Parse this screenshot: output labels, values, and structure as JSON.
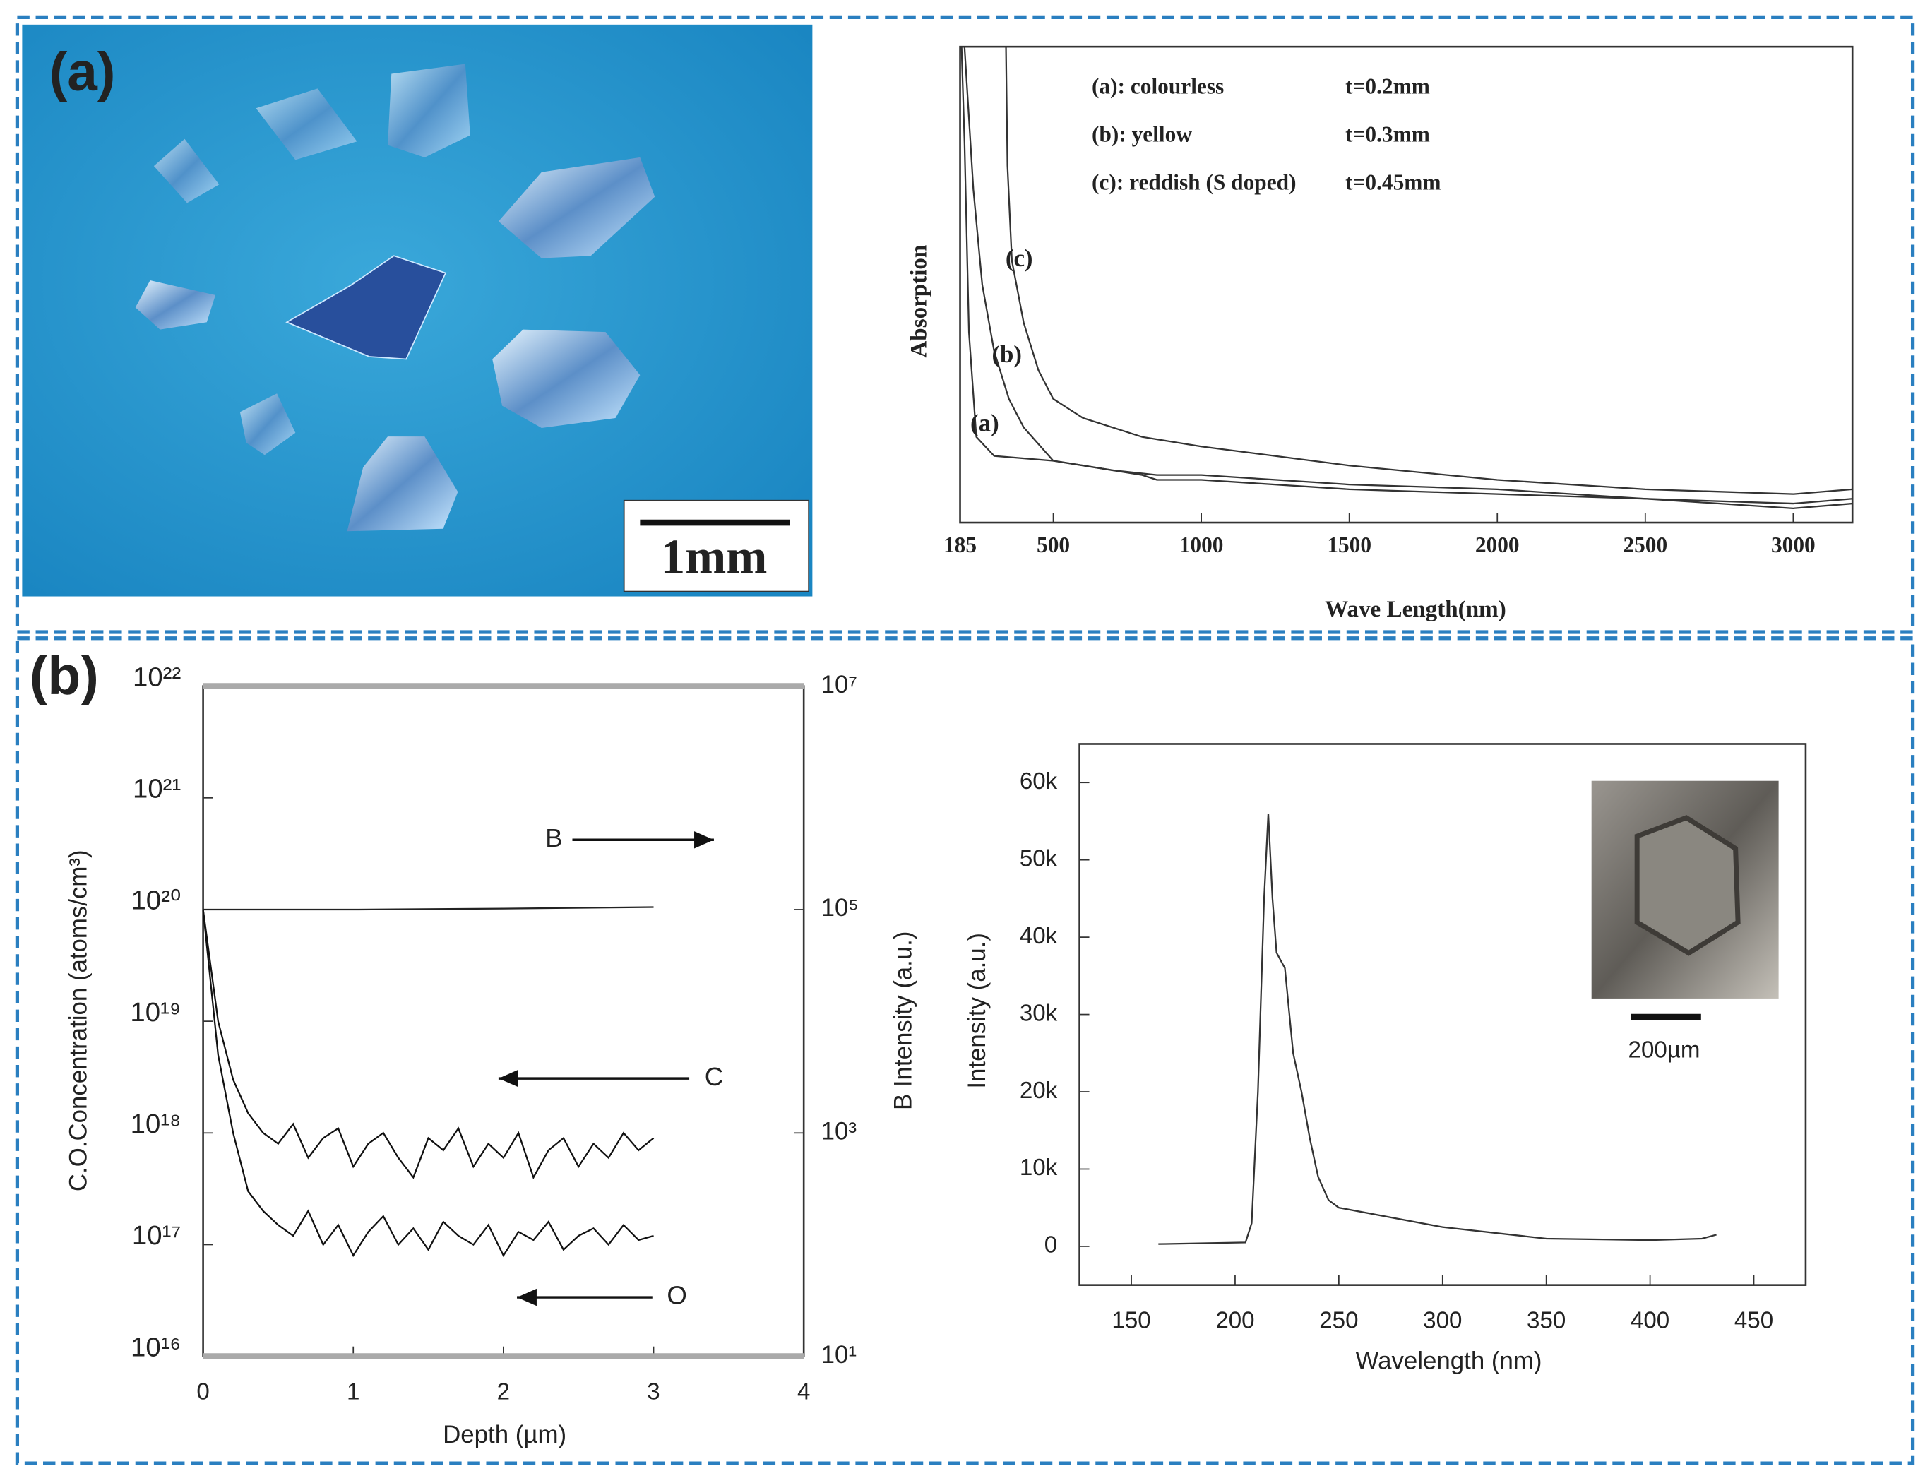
{
  "panels": [
    "(a)",
    "(b)"
  ],
  "photo_scale": "1mm",
  "chart_data": [
    {
      "type": "line",
      "xlabel": "Wave Length(nm)",
      "ylabel": "Absorption",
      "xlim": [
        185,
        3200
      ],
      "xticks": [
        185,
        500,
        1000,
        1500,
        2000,
        2500,
        3000
      ],
      "ylim": [
        0,
        1
      ],
      "grid": false,
      "legend": [
        {
          "label": "(a): colourless",
          "note": "t=0.2mm"
        },
        {
          "label": "(b): yellow",
          "note": "t=0.3mm"
        },
        {
          "label": "(c): reddish (S doped)",
          "note": "t=0.45mm"
        }
      ],
      "series": [
        {
          "name": "(a)",
          "color": "#333333",
          "x": [
            190,
            200,
            215,
            240,
            300,
            500,
            800,
            850,
            1000,
            1500,
            2000,
            2500,
            3000,
            3200
          ],
          "values": [
            1,
            0.8,
            0.4,
            0.18,
            0.14,
            0.13,
            0.1,
            0.09,
            0.09,
            0.07,
            0.06,
            0.05,
            0.04,
            0.05
          ]
        },
        {
          "name": "(b)",
          "color": "#333333",
          "x": [
            200,
            230,
            260,
            300,
            350,
            400,
            500,
            700,
            850,
            1000,
            1500,
            2000,
            2500,
            3000,
            3200
          ],
          "values": [
            1,
            0.7,
            0.5,
            0.36,
            0.26,
            0.2,
            0.13,
            0.11,
            0.1,
            0.1,
            0.08,
            0.07,
            0.05,
            0.03,
            0.04
          ]
        },
        {
          "name": "(c)",
          "color": "#333333",
          "x": [
            340,
            345,
            360,
            400,
            450,
            500,
            600,
            800,
            1000,
            1500,
            2000,
            2500,
            3000,
            3200
          ],
          "values": [
            1,
            0.75,
            0.55,
            0.42,
            0.32,
            0.26,
            0.22,
            0.18,
            0.16,
            0.12,
            0.09,
            0.07,
            0.06,
            0.07
          ]
        }
      ]
    },
    {
      "type": "line",
      "log": true,
      "xlabel": "Depth (µm)",
      "ylabel": "C.O.Concentration (atoms/cm³)",
      "y2label": "B Intensity (a.u.)",
      "xlim": [
        0,
        4
      ],
      "xticks": [
        0,
        1,
        2,
        3,
        4
      ],
      "ylim": [
        1e+16,
        1e+22
      ],
      "yticks": [
        {
          "value": 1e+16,
          "label": "10¹⁶"
        },
        {
          "value": 1e+17,
          "label": "10¹⁷"
        },
        {
          "value": 1e+18,
          "label": "10¹⁸"
        },
        {
          "value": 1e+19,
          "label": "10¹⁹"
        },
        {
          "value": 1e+20,
          "label": "10²⁰"
        },
        {
          "value": 1e+21,
          "label": "10²¹"
        },
        {
          "value": 1e+22,
          "label": "10²²"
        }
      ],
      "y2lim": [
        10,
        10000000.0
      ],
      "y2ticks": [
        {
          "value": 10,
          "label": "10¹"
        },
        {
          "value": 1000,
          "label": "10³"
        },
        {
          "value": 100000,
          "label": "10⁵"
        },
        {
          "value": 10000000,
          "label": "10⁷"
        }
      ],
      "grid": false,
      "series": [
        {
          "name": "B",
          "color": "#222222",
          "axis": "y2",
          "x": [
            0,
            1,
            2,
            3
          ],
          "values": [
            100000,
            100000,
            102000,
            105000
          ]
        },
        {
          "name": "C",
          "color": "#111111",
          "x": [
            0,
            0.1,
            0.2,
            0.3,
            0.4,
            0.5,
            0.6,
            0.7,
            0.8,
            0.9,
            1,
            1.1,
            1.2,
            1.3,
            1.4,
            1.5,
            1.6,
            1.7,
            1.8,
            1.9,
            2,
            2.1,
            2.2,
            2.3,
            2.4,
            2.5,
            2.6,
            2.7,
            2.8,
            2.9,
            3
          ],
          "values": [
            1e+20,
            1e+19,
            3e+18,
            1.5e+18,
            1e+18,
            8e+17,
            1.2e+18,
            6e+17,
            9e+17,
            1.1e+18,
            5e+17,
            8e+17,
            1e+18,
            6e+17,
            4e+17,
            9e+17,
            7e+17,
            1.1e+18,
            5e+17,
            8e+17,
            6e+17,
            1e+18,
            4e+17,
            7e+17,
            9e+17,
            5e+17,
            8e+17,
            6e+17,
            1e+18,
            7e+17,
            9e+17
          ]
        },
        {
          "name": "O",
          "color": "#111111",
          "x": [
            0,
            0.1,
            0.2,
            0.3,
            0.4,
            0.5,
            0.6,
            0.7,
            0.8,
            0.9,
            1,
            1.1,
            1.2,
            1.3,
            1.4,
            1.5,
            1.6,
            1.7,
            1.8,
            1.9,
            2,
            2.1,
            2.2,
            2.3,
            2.4,
            2.5,
            2.6,
            2.7,
            2.8,
            2.9,
            3
          ],
          "values": [
            1e+20,
            5e+18,
            1e+18,
            3e+17,
            2e+17,
            1.5e+17,
            1.2e+17,
            2e+17,
            1e+17,
            1.5e+17,
            8e+16,
            1.3e+17,
            1.8e+17,
            1e+17,
            1.4e+17,
            9e+16,
            1.6e+17,
            1.2e+17,
            1e+17,
            1.5e+17,
            8e+16,
            1.3e+17,
            1.1e+17,
            1.6e+17,
            9e+16,
            1.2e+17,
            1.4e+17,
            1e+17,
            1.5e+17,
            1.1e+17,
            1.2e+17
          ]
        }
      ]
    },
    {
      "type": "line",
      "xlabel": "Wavelength (nm)",
      "ylabel": "Intensity (a.u.)",
      "xlim": [
        125,
        475
      ],
      "xticks": [
        150,
        200,
        250,
        300,
        350,
        400,
        450
      ],
      "ylim": [
        -5000,
        65000
      ],
      "yticks": [
        0,
        {
          "value": 10000,
          "label": "10k"
        },
        {
          "value": 20000,
          "label": "20k"
        },
        {
          "value": 30000,
          "label": "30k"
        },
        {
          "value": 40000,
          "label": "40k"
        },
        {
          "value": 50000,
          "label": "50k"
        },
        {
          "value": 60000,
          "label": "60k"
        }
      ],
      "grid": false,
      "inset_scale": "200µm",
      "series": [
        {
          "color": "#333333",
          "x": [
            163,
            205,
            208,
            211,
            214,
            216,
            218,
            220,
            224,
            228,
            232,
            236,
            240,
            245,
            250,
            270,
            300,
            350,
            400,
            425,
            432
          ],
          "values": [
            300,
            500,
            3000,
            20000,
            45000,
            56000,
            45000,
            38000,
            36000,
            25000,
            20000,
            14000,
            9000,
            6000,
            5000,
            4000,
            2500,
            1000,
            800,
            1000,
            1500
          ]
        }
      ]
    }
  ]
}
